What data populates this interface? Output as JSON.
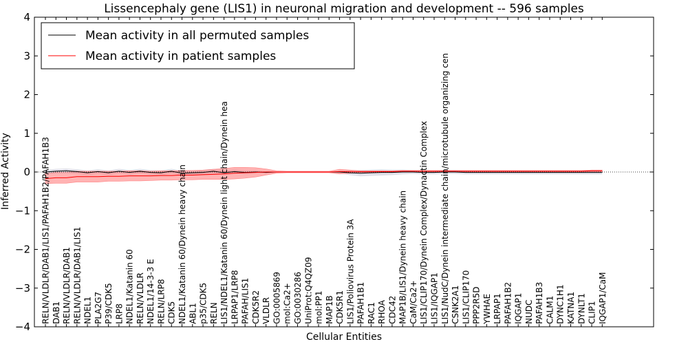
{
  "chart_data": {
    "type": "line",
    "title": "Lissencephaly gene (LIS1) in neuronal migration and development -- 596 samples",
    "xlabel": "Cellular Entities",
    "ylabel": "Inferred Activity",
    "ylim": [
      -4,
      4
    ],
    "yticks": [
      -4,
      -3,
      -2,
      -1,
      0,
      1,
      2,
      3,
      4
    ],
    "ytick_labels": [
      "−4",
      "−3",
      "−2",
      "−1",
      "0",
      "1",
      "2",
      "3",
      "4"
    ],
    "legend_position": "top-left",
    "colors": {
      "permuted": "#000000",
      "patient": "#ff0000",
      "patient_band": "#ff8080",
      "permuted_band": "#bbbbcc"
    },
    "categories": [
      "RELN/VLDLR/DAB1/LIS1/PAFAH1B2/PAFAH1B3",
      "DAB1",
      "RELN/VLDLR/DAB1",
      "RELN/VLDLR/DAB1/LIS1",
      "NDEL1",
      "PLA2G7",
      "P39/CDK5",
      "LRP8",
      "NDEL1/Katanin 60",
      "RELN/VLDLR",
      "NDEL1/14-3-3 E",
      "RELN/LRP8",
      "CDK5",
      "NDEL1/Katanin 60/Dynein heavy chain",
      "ABL1",
      "p35/CDK5",
      "RELN",
      "LIS1/NDEL1/Katanin 60/Dynein light chain/Dynein hea",
      "LRPAP1/LRP8",
      "PAFAH/LIS1",
      "CDK5R2",
      "VLDLR",
      "GO:0005869",
      "mol:Ca2+",
      "GO:0030286",
      "UniProt:Q4QZ09",
      "mol:PP1",
      "MAP1B",
      "CDK5R1",
      "LIS1/Poliovirus Protein 3A",
      "PAFAH1B1",
      "RAC1",
      "RHOA",
      "CDC42",
      "MAP1B/LIS1/Dynein heavy chain",
      "CaM/Ca2+",
      "LIS1/CLIP170/Dynein Complex/Dynactin Complex",
      "LIS1/IQGAP1",
      "LIS1/NudC/Dynein intermediate chain/microtubule organizing cen",
      "CSNK2A1",
      "LIS1/CLIP170",
      "PPP2R5D",
      "YWHAE",
      "LRPAP1",
      "PAFAH1B2",
      "IQGAP1",
      "NUDC",
      "PAFAH1B3",
      "CALM1",
      "DYNC1H1",
      "KATNA1",
      "DYNLT1",
      "CLIP1",
      "IQGAP1/CaM"
    ],
    "series": [
      {
        "name": "Mean activity in all permuted samples",
        "values": [
          0.0,
          0.02,
          0.03,
          0.01,
          -0.02,
          0.01,
          -0.02,
          0.02,
          -0.01,
          0.02,
          -0.01,
          -0.02,
          0.02,
          -0.03,
          -0.02,
          -0.01,
          0.02,
          -0.02,
          0.01,
          -0.01,
          0.0,
          -0.01,
          0.0,
          0.0,
          0.0,
          0.0,
          0.0,
          0.0,
          0.0,
          -0.02,
          -0.03,
          -0.02,
          -0.01,
          -0.01,
          0.0,
          0.0,
          -0.01,
          -0.01,
          0.0,
          0.0,
          -0.01,
          -0.01,
          -0.01,
          -0.01,
          -0.01,
          -0.01,
          -0.01,
          -0.01,
          -0.01,
          -0.01,
          -0.01,
          -0.01,
          -0.01,
          -0.01
        ],
        "band": [
          0.05,
          0.06,
          0.06,
          0.06,
          0.06,
          0.06,
          0.06,
          0.06,
          0.06,
          0.06,
          0.06,
          0.06,
          0.06,
          0.06,
          0.06,
          0.06,
          0.06,
          0.06,
          0.05,
          0.05,
          0.04,
          0.03,
          0.02,
          0.02,
          0.02,
          0.02,
          0.02,
          0.02,
          0.03,
          0.06,
          0.08,
          0.08,
          0.08,
          0.07,
          0.06,
          0.05,
          0.05,
          0.05,
          0.05,
          0.05,
          0.05,
          0.05,
          0.05,
          0.05,
          0.05,
          0.05,
          0.05,
          0.05,
          0.05,
          0.05,
          0.05,
          0.05,
          0.05,
          0.05
        ]
      },
      {
        "name": "Mean activity in patient samples",
        "values": [
          -0.17,
          -0.15,
          -0.15,
          -0.12,
          -0.12,
          -0.12,
          -0.11,
          -0.11,
          -0.1,
          -0.1,
          -0.1,
          -0.09,
          -0.09,
          -0.08,
          -0.08,
          -0.07,
          -0.06,
          -0.05,
          -0.03,
          -0.02,
          -0.01,
          0.0,
          0.0,
          0.0,
          0.0,
          0.0,
          0.0,
          0.0,
          0.01,
          0.01,
          0.01,
          0.01,
          0.01,
          0.01,
          0.02,
          0.02,
          0.02,
          0.02,
          0.02,
          0.02,
          0.02,
          0.02,
          0.02,
          0.02,
          0.02,
          0.02,
          0.02,
          0.02,
          0.02,
          0.02,
          0.02,
          0.02,
          0.03,
          0.03
        ],
        "band": [
          0.13,
          0.14,
          0.14,
          0.14,
          0.14,
          0.14,
          0.13,
          0.13,
          0.13,
          0.13,
          0.12,
          0.12,
          0.12,
          0.12,
          0.12,
          0.12,
          0.13,
          0.14,
          0.15,
          0.14,
          0.12,
          0.08,
          0.03,
          0.02,
          0.02,
          0.02,
          0.02,
          0.02,
          0.06,
          0.04,
          0.02,
          0.02,
          0.02,
          0.02,
          0.02,
          0.02,
          0.02,
          0.02,
          0.02,
          0.02,
          0.02,
          0.02,
          0.02,
          0.02,
          0.02,
          0.02,
          0.02,
          0.02,
          0.02,
          0.02,
          0.02,
          0.02,
          0.02,
          0.02
        ]
      }
    ]
  }
}
